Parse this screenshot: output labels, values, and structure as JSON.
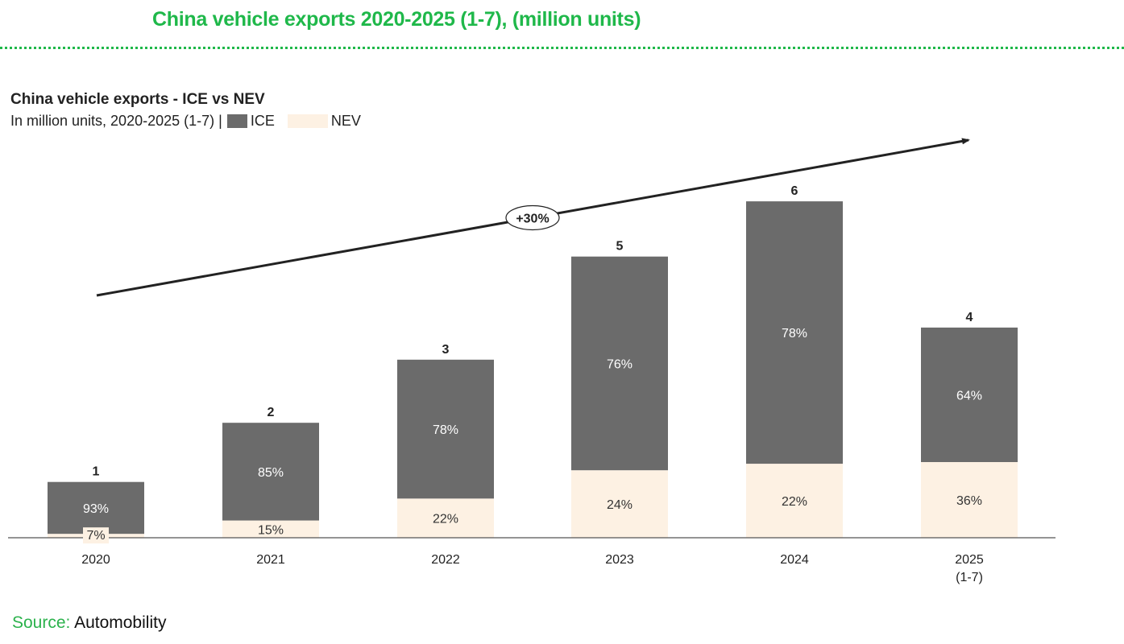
{
  "header": {
    "title": "China vehicle exports 2020-2025 (1-7), (million units)",
    "title_color": "#1fb84a"
  },
  "legend": {
    "items": [
      {
        "label": "ICE",
        "color": "#6b6b6b"
      },
      {
        "label": "NEV",
        "color": "#fdf1e3"
      }
    ]
  },
  "source": {
    "prefix": "Source:",
    "text": "Automobility",
    "prefix_color": "#2bb24c"
  },
  "chart_data": {
    "type": "bar",
    "stacked": true,
    "title": "China vehicle exports - ICE vs NEV",
    "subtitle": "In million units, 2020-2025 (1-7) |",
    "xlabel": "",
    "ylabel": "Million units",
    "ylim": [
      0,
      6.5
    ],
    "grid": false,
    "legend_position": "top-left",
    "categories": [
      "2020",
      "2021",
      "2022",
      "2023",
      "2024",
      "2025\n(1-7)"
    ],
    "totals": [
      0.99,
      2.04,
      3.16,
      4.99,
      5.97,
      3.73
    ],
    "total_labels": [
      "1",
      "2",
      "3",
      "5",
      "6",
      "4"
    ],
    "series": [
      {
        "name": "ICE",
        "color": "#6b6b6b",
        "share_pct": [
          93,
          85,
          78,
          76,
          78,
          64
        ],
        "labels": [
          "93%",
          "85%",
          "78%",
          "76%",
          "78%",
          "64%"
        ]
      },
      {
        "name": "NEV",
        "color": "#fdf1e3",
        "share_pct": [
          7,
          15,
          22,
          24,
          22,
          36
        ],
        "labels": [
          "7%",
          "15%",
          "22%",
          "24%",
          "22%",
          "36%"
        ]
      }
    ],
    "annotations": [
      {
        "type": "trend-arrow",
        "label": "+30%",
        "from_category": "2020",
        "to_category": "2025\n(1-7)"
      }
    ]
  }
}
